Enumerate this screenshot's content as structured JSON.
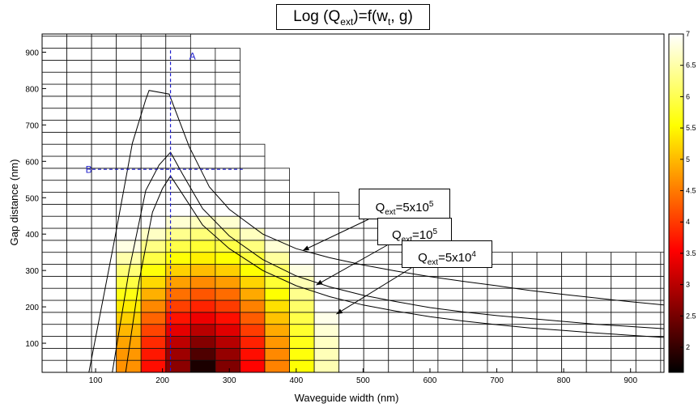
{
  "chart_data": {
    "type": "heatmap",
    "title": "Log (Q_ext)=f(w_t, g)",
    "title_parts": {
      "main": "Log (Q",
      "sub1": "ext",
      "mid": ")=f(w",
      "sub2": "t",
      "end": ", g)"
    },
    "xlabel": "Waveguide width (nm)",
    "ylabel": "Gap distance (nm)",
    "xlim": [
      20,
      950
    ],
    "ylim": [
      20,
      950
    ],
    "xticks": [
      100,
      200,
      300,
      400,
      500,
      600,
      700,
      800,
      900
    ],
    "yticks": [
      100,
      200,
      300,
      400,
      500,
      600,
      700,
      800,
      900
    ],
    "colorbar": {
      "min": 1.6,
      "max": 7,
      "ticks": [
        "2",
        "2.5",
        "3",
        "3.5",
        "4",
        "4.5",
        "5",
        "5.5",
        "6",
        "6.5",
        "7"
      ],
      "colormap": "hot"
    },
    "cell": {
      "dx": 37,
      "dy": 33
    },
    "grid_boundary": [
      {
        "w_max": 240,
        "g_max": 950
      },
      {
        "w_max": 280,
        "g_max": 880
      },
      {
        "w_max": 315,
        "g_max": 740
      },
      {
        "w_max": 350,
        "g_max": 640
      },
      {
        "w_max": 390,
        "g_max": 575
      },
      {
        "w_max": 430,
        "g_max": 510
      },
      {
        "w_max": 470,
        "g_max": 480
      },
      {
        "w_max": 510,
        "g_max": 445
      },
      {
        "w_max": 545,
        "g_max": 410
      },
      {
        "w_max": 580,
        "g_max": 375
      },
      {
        "w_max": 715,
        "g_max": 345
      },
      {
        "w_max": 950,
        "g_max": 335
      }
    ],
    "field": {
      "center_w": 262,
      "center_g": 20,
      "min_value": 1.6,
      "max_value": 7
    },
    "series": [
      {
        "name": "Q_ext=5x10^5",
        "x": [
          90,
          130,
          155,
          175,
          180,
          210,
          240,
          270,
          300,
          350,
          400,
          450,
          500,
          550,
          600,
          650,
          700,
          750,
          800,
          850,
          900,
          950
        ],
        "y": [
          20,
          400,
          650,
          770,
          795,
          785,
          640,
          530,
          468,
          400,
          360,
          335,
          315,
          298,
          283,
          270,
          258,
          245,
          234,
          224,
          214,
          205
        ]
      },
      {
        "name": "Q_ext=10^5",
        "x": [
          125,
          150,
          175,
          195,
          212,
          230,
          260,
          300,
          350,
          400,
          450,
          500,
          550,
          600,
          650,
          700,
          750,
          800,
          850,
          900,
          950
        ],
        "y": [
          20,
          300,
          520,
          590,
          625,
          565,
          470,
          395,
          330,
          285,
          255,
          232,
          214,
          198,
          186,
          176,
          168,
          160,
          152,
          146,
          140
        ]
      },
      {
        "name": "Q_ext=5x10^4",
        "x": [
          145,
          165,
          185,
          200,
          212,
          230,
          260,
          300,
          350,
          400,
          450,
          500,
          550,
          600,
          650,
          700,
          750,
          800,
          850,
          900,
          950
        ],
        "y": [
          20,
          270,
          460,
          525,
          560,
          510,
          425,
          360,
          300,
          258,
          228,
          205,
          188,
          173,
          161,
          151,
          142,
          135,
          128,
          122,
          116
        ]
      }
    ],
    "annotations": [
      {
        "text": "A",
        "x": 240,
        "y": 880
      },
      {
        "text": "B",
        "x": 85,
        "y": 568
      }
    ],
    "cut_lines": [
      {
        "name": "A",
        "x1": 212,
        "y1": 905,
        "x2": 212,
        "y2": 20
      },
      {
        "name": "B",
        "x1": 95,
        "y1": 578,
        "x2": 320,
        "y2": 578
      }
    ],
    "labels": [
      {
        "base": "Q",
        "sub": "ext",
        "rest": "=5x10",
        "sup": "5",
        "tip_x": 410,
        "tip_y": 355
      },
      {
        "base": "Q",
        "sub": "ext",
        "rest": "=10",
        "sup": "5",
        "tip_x": 430,
        "tip_y": 260
      },
      {
        "base": "Q",
        "sub": "ext",
        "rest": "=5x10",
        "sup": "4",
        "tip_x": 460,
        "tip_y": 180
      }
    ]
  }
}
